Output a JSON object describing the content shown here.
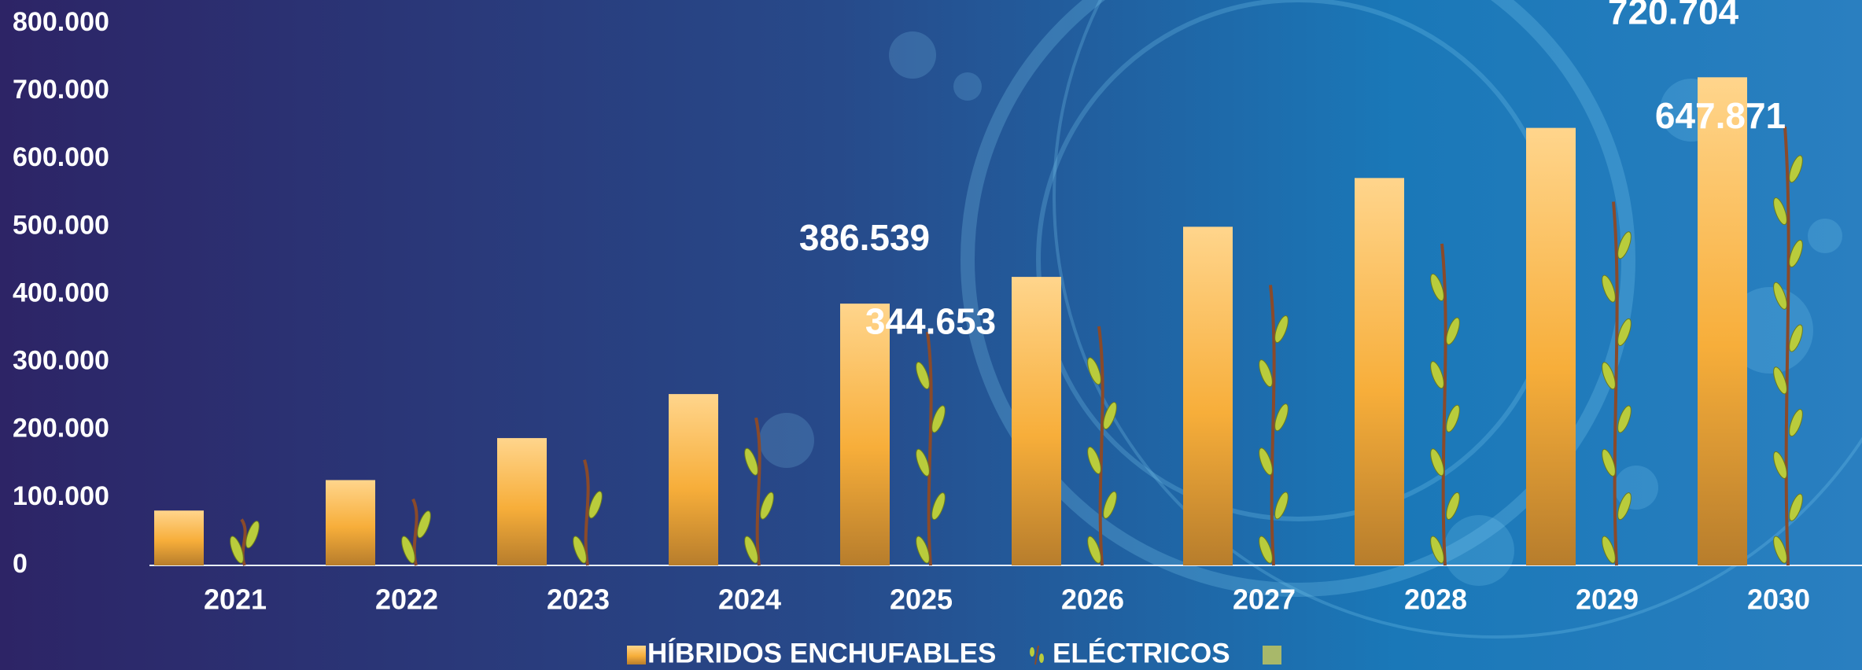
{
  "chart_data": {
    "type": "bar",
    "categories": [
      "2021",
      "2022",
      "2023",
      "2024",
      "2025",
      "2026",
      "2027",
      "2028",
      "2029",
      "2030"
    ],
    "series": [
      {
        "name": "HÍBRIDOS ENCHUFABLES",
        "color": "#f5b342",
        "values": [
          81000,
          126000,
          188000,
          253000,
          386539,
          426000,
          500000,
          572000,
          646000,
          720704
        ],
        "value_labels": [
          null,
          null,
          null,
          null,
          "386.539",
          null,
          null,
          null,
          null,
          "720.704"
        ]
      },
      {
        "name": "ELÉCTRICOS",
        "color": "#b9cc3c",
        "values": [
          68000,
          98000,
          156000,
          218000,
          344653,
          353000,
          414000,
          475000,
          537000,
          647871
        ],
        "value_labels": [
          null,
          null,
          null,
          null,
          "344.653",
          null,
          null,
          null,
          null,
          "647.871"
        ]
      }
    ],
    "ylim": [
      0,
      800000
    ],
    "yticks": [
      0,
      {
        "value": 100000,
        "label": "100.000"
      },
      {
        "value": 200000,
        "label": "200.000"
      },
      {
        "value": 300000,
        "label": "300.000"
      },
      {
        "value": 400000,
        "label": "400.000"
      },
      {
        "value": 500000,
        "label": "500.000"
      },
      {
        "value": 600000,
        "label": "600.000"
      },
      {
        "value": 700000,
        "label": "700.000"
      },
      {
        "value": 800000,
        "label": "800.000"
      }
    ],
    "grid": false
  }
}
